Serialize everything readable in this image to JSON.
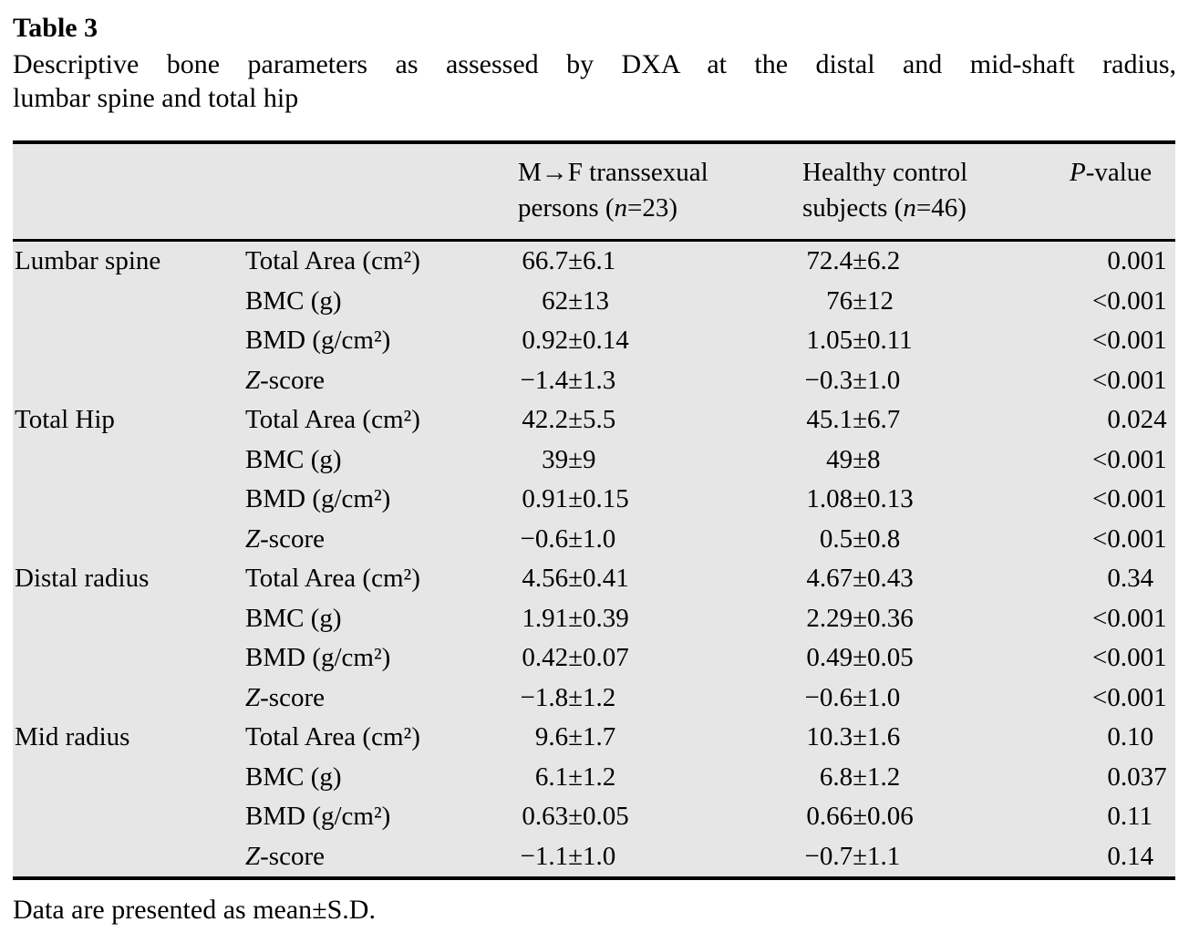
{
  "title": "Table 3",
  "caption_lines": [
    "Descriptive bone parameters as assessed by DXA at the distal and mid-shaft radius,",
    "lumbar spine and total hip"
  ],
  "colors": {
    "table_background": "#e6e6e6",
    "rule": "#000000",
    "text": "#000000",
    "page_background": "#ffffff"
  },
  "table": {
    "header": {
      "mf_lines": [
        "M→F transsexual",
        "persons (*n*=23)"
      ],
      "control_lines": [
        "Healthy control",
        "subjects (*n*=46)"
      ],
      "p_value": "*P*-value"
    },
    "groups": [
      {
        "name": "Lumbar spine",
        "rows": [
          {
            "param": "Total Area (cm²)",
            "mf": "66.7±6.1",
            "control": "72.4±6.2",
            "p": "0.001"
          },
          {
            "param": "BMC (g)",
            "mf": "62±13",
            "control": "76±12",
            "p": "<0.001"
          },
          {
            "param": "BMD (g/cm²)",
            "mf": "0.92±0.14",
            "control": "1.05±0.11",
            "p": "<0.001"
          },
          {
            "param": "*Z*-score",
            "mf": "−1.4±1.3",
            "control": "−0.3±1.0",
            "p": "<0.001"
          }
        ]
      },
      {
        "name": "Total Hip",
        "rows": [
          {
            "param": "Total Area (cm²)",
            "mf": "42.2±5.5",
            "control": "45.1±6.7",
            "p": "0.024"
          },
          {
            "param": "BMC (g)",
            "mf": "39±9",
            "control": "49±8",
            "p": "<0.001"
          },
          {
            "param": "BMD (g/cm²)",
            "mf": "0.91±0.15",
            "control": "1.08±0.13",
            "p": "<0.001"
          },
          {
            "param": "*Z*-score",
            "mf": "−0.6±1.0",
            "control": "0.5±0.8",
            "p": "<0.001"
          }
        ]
      },
      {
        "name": "Distal radius",
        "rows": [
          {
            "param": "Total Area (cm²)",
            "mf": "4.56±0.41",
            "control": "4.67±0.43",
            "p": "0.34"
          },
          {
            "param": "BMC (g)",
            "mf": "1.91±0.39",
            "control": "2.29±0.36",
            "p": "<0.001"
          },
          {
            "param": "BMD (g/cm²)",
            "mf": "0.42±0.07",
            "control": "0.49±0.05",
            "p": "<0.001"
          },
          {
            "param": "*Z*-score",
            "mf": "−1.8±1.2",
            "control": "−0.6±1.0",
            "p": "<0.001"
          }
        ]
      },
      {
        "name": "Mid radius",
        "rows": [
          {
            "param": "Total Area (cm²)",
            "mf": "9.6±1.7",
            "control": "10.3±1.6",
            "p": "0.10"
          },
          {
            "param": "BMC (g)",
            "mf": "6.1±1.2",
            "control": "6.8±1.2",
            "p": "0.037"
          },
          {
            "param": "BMD (g/cm²)",
            "mf": "0.63±0.05",
            "control": "0.66±0.06",
            "p": "0.11"
          },
          {
            "param": "*Z*-score",
            "mf": "−1.1±1.0",
            "control": "−0.7±1.1",
            "p": "0.14"
          }
        ]
      }
    ]
  },
  "footnote": "Data are presented as mean±S.D."
}
